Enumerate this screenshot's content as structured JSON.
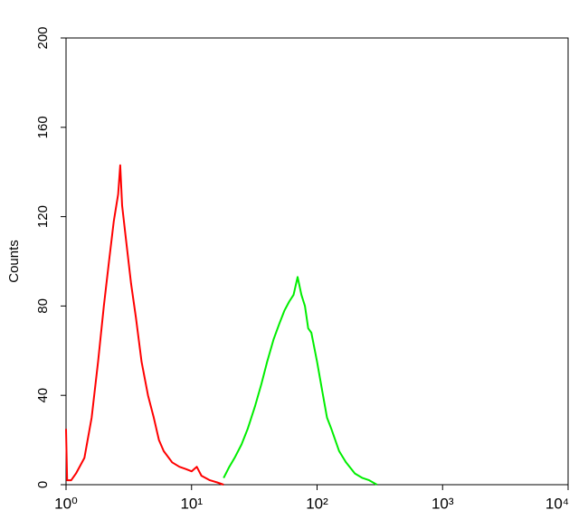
{
  "chart_data": {
    "type": "line",
    "y_label": "Counts",
    "xscale": "log",
    "xlim": [
      1,
      10000
    ],
    "xticks": [
      {
        "value": 1,
        "label": "10⁰"
      },
      {
        "value": 10,
        "label": "10¹"
      },
      {
        "value": 100,
        "label": "10²"
      },
      {
        "value": 1000,
        "label": "10³"
      },
      {
        "value": 10000,
        "label": "10⁴"
      }
    ],
    "ylim": [
      0,
      200
    ],
    "yticks": [
      0,
      40,
      80,
      120,
      160,
      200
    ],
    "series": [
      {
        "color": "#ff0000",
        "x": [
          1.0,
          1.02,
          1.1,
          1.2,
          1.4,
          1.6,
          1.8,
          2.0,
          2.2,
          2.4,
          2.6,
          2.7,
          2.8,
          3.0,
          3.3,
          3.6,
          4.0,
          4.5,
          5.0,
          5.5,
          6.0,
          7.0,
          8.0,
          9.0,
          10,
          11,
          12,
          14,
          16,
          18
        ],
        "values": [
          25,
          2,
          2,
          5,
          12,
          30,
          55,
          80,
          100,
          118,
          130,
          143,
          125,
          110,
          90,
          75,
          55,
          40,
          30,
          20,
          15,
          10,
          8,
          7,
          6,
          8,
          4,
          2,
          1,
          0
        ]
      },
      {
        "color": "#00ee00",
        "x": [
          18,
          20,
          22,
          25,
          28,
          32,
          36,
          40,
          45,
          50,
          55,
          60,
          65,
          70,
          75,
          80,
          85,
          90,
          100,
          110,
          120,
          130,
          150,
          170,
          200,
          230,
          260,
          300
        ],
        "values": [
          3,
          8,
          12,
          18,
          25,
          35,
          45,
          55,
          65,
          72,
          78,
          82,
          85,
          93,
          85,
          80,
          70,
          68,
          55,
          42,
          30,
          25,
          15,
          10,
          5,
          3,
          2,
          0
        ]
      }
    ]
  }
}
